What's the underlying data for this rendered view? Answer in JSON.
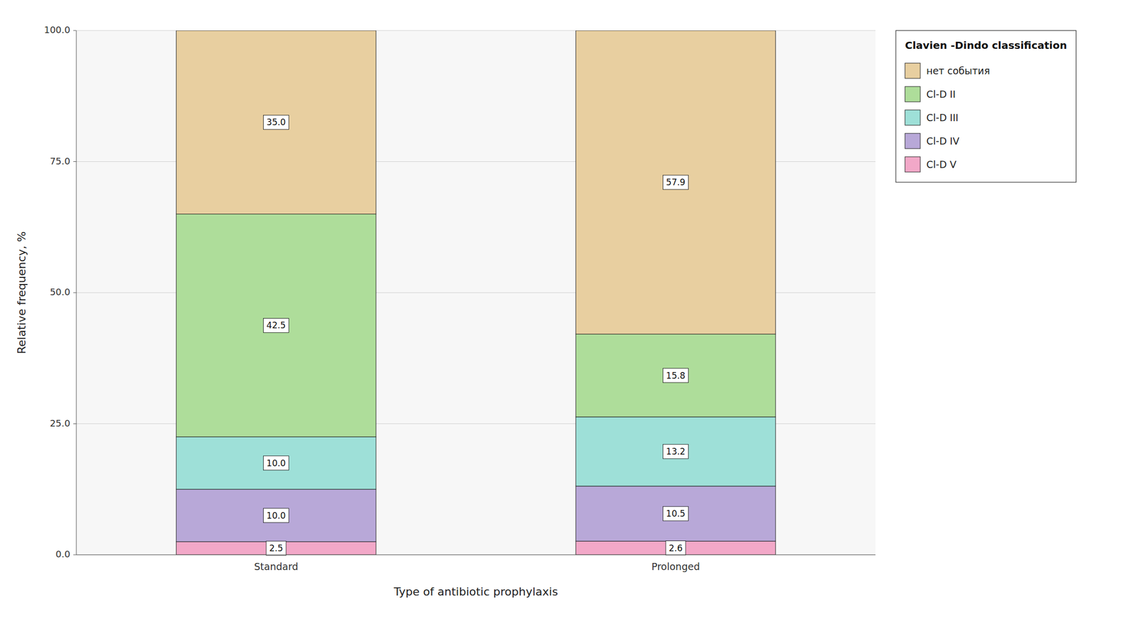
{
  "chart_data": {
    "type": "bar",
    "stacked": true,
    "xlabel": "Type of antibiotic prophylaxis",
    "ylabel": "Relative frequency, %",
    "legend_title": "Clavien -Dindo classification",
    "categories": [
      "Standard",
      "Prolonged"
    ],
    "series": [
      {
        "name": "Cl-D V",
        "color": "#F2A8C8",
        "values": [
          2.5,
          2.6
        ],
        "value_labels": [
          "2.5",
          "2.6"
        ]
      },
      {
        "name": "Cl-D IV",
        "color": "#B8A8D8",
        "values": [
          10.0,
          10.5
        ],
        "value_labels": [
          "10.0",
          "10.5"
        ]
      },
      {
        "name": "Cl-D III",
        "color": "#9EE0D8",
        "values": [
          10.0,
          13.2
        ],
        "value_labels": [
          "10.0",
          "13.2"
        ]
      },
      {
        "name": "Cl-D II",
        "color": "#AEDD9A",
        "values": [
          42.5,
          15.8
        ],
        "value_labels": [
          "42.5",
          "15.8"
        ]
      },
      {
        "name": "нет события",
        "color": "#E8CFA0",
        "values": [
          35.0,
          57.9
        ],
        "value_labels": [
          "35.0",
          "57.9"
        ]
      }
    ],
    "ylim": [
      0,
      100
    ],
    "yticks": [
      {
        "value": 0,
        "label": "0.0"
      },
      {
        "value": 25,
        "label": "25.0"
      },
      {
        "value": 50,
        "label": "50.0"
      },
      {
        "value": 75,
        "label": "75.0"
      },
      {
        "value": 100,
        "label": "100.0"
      }
    ],
    "grid": true,
    "data_labels": true,
    "legend": "right"
  }
}
